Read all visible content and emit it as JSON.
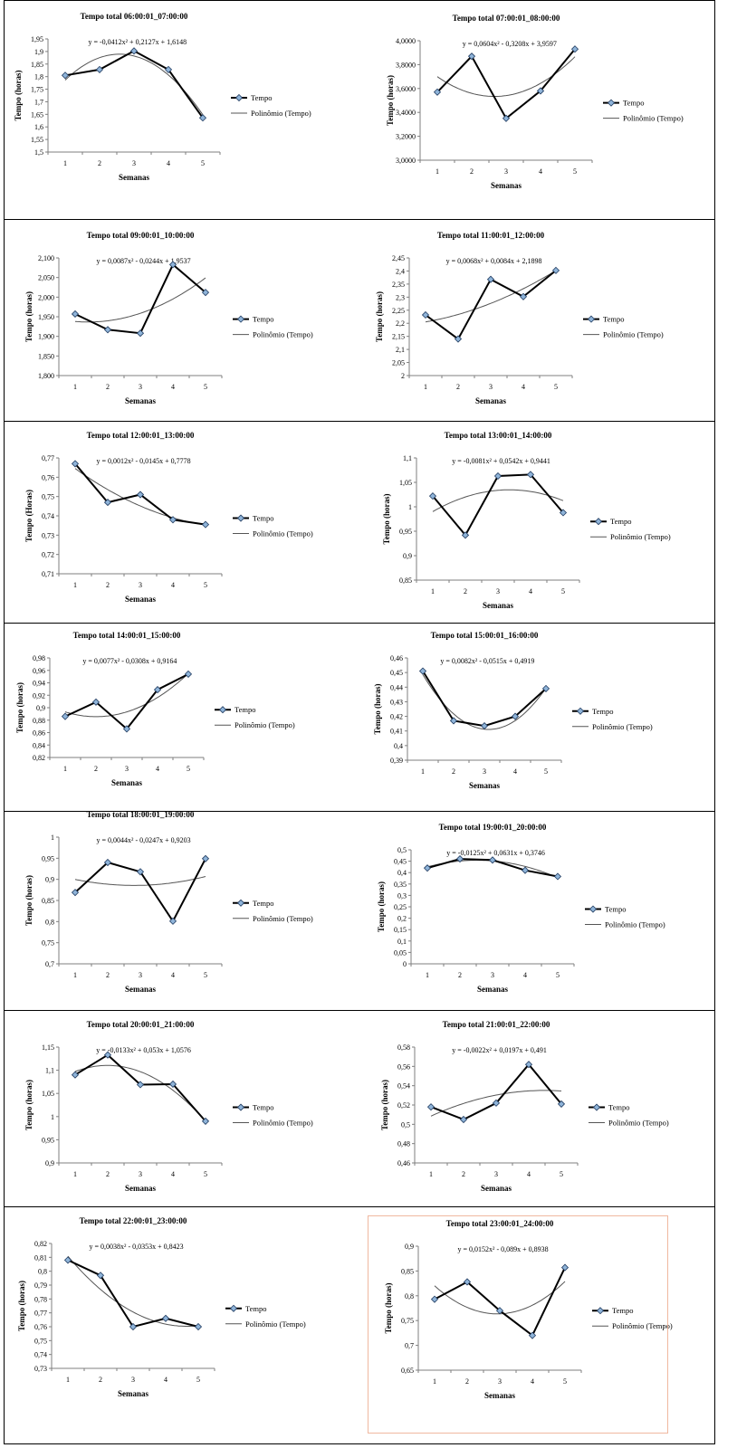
{
  "colors": {
    "data_line": "#000000",
    "marker_fill": "#8fb4d9",
    "marker_stroke": "#1f3a5f",
    "trend_line": "#555555",
    "highlight_border": "#f0b8a0"
  },
  "chart_data": [
    {
      "type": "line",
      "title": "Tempo total 06:00:01_07:00:00",
      "equation": "y = -0,0412x² + 0,2127x + 1,6148",
      "xlabel": "Semanas",
      "ylabel": "Tempo (horas)",
      "x": [
        1,
        2,
        3,
        4,
        5
      ],
      "y_ticks": [
        "1,5",
        "1,55",
        "1,6",
        "1,65",
        "1,7",
        "1,75",
        "1,8",
        "1,85",
        "1,9",
        "1,95"
      ],
      "ylim": [
        1.5,
        1.95
      ],
      "series": [
        {
          "name": "Tempo",
          "values": [
            1.805,
            1.828,
            1.902,
            1.828,
            1.636
          ]
        },
        {
          "name": "Polinômio (Tempo)",
          "coefficients": [
            1.6148,
            0.2127,
            -0.0412
          ]
        }
      ],
      "legend": "right"
    },
    {
      "type": "line",
      "title": "Tempo total 07:00:01_08:00:00",
      "equation": "y = 0,0604x² - 0,3208x + 3,9597",
      "xlabel": "Semanas",
      "ylabel": "Tempo (horas)",
      "x": [
        1,
        2,
        3,
        4,
        5
      ],
      "y_ticks": [
        "3,0000",
        "3,2000",
        "3,4000",
        "3,6000",
        "3,8000",
        "4,0000"
      ],
      "ylim": [
        3.0,
        4.0
      ],
      "series": [
        {
          "name": "Tempo",
          "values": [
            3.57,
            3.87,
            3.35,
            3.58,
            3.93
          ]
        },
        {
          "name": "Polinômio (Tempo)",
          "coefficients": [
            3.9597,
            -0.3208,
            0.0604
          ]
        }
      ],
      "legend": "right"
    },
    {
      "type": "line",
      "title": "Tempo total 09:00:01_10:00:00",
      "equation": "y = 0,0087x² - 0,0244x + 1,9537",
      "xlabel": "Semanas",
      "ylabel": "Tempo (horas)",
      "x": [
        1,
        2,
        3,
        4,
        5
      ],
      "y_ticks": [
        "1,800",
        "1,850",
        "1,900",
        "1,950",
        "2,000",
        "2,050",
        "2,100"
      ],
      "ylim": [
        1.8,
        2.1
      ],
      "series": [
        {
          "name": "Tempo",
          "values": [
            1.957,
            1.917,
            1.908,
            2.083,
            2.012
          ]
        },
        {
          "name": "Polinômio (Tempo)",
          "coefficients": [
            1.9537,
            -0.0244,
            0.0087
          ]
        }
      ],
      "legend": "right"
    },
    {
      "type": "line",
      "title": "Tempo total 11:00:01_12:00:00",
      "equation": "y = 0,0068x² + 0,0084x + 2,1898",
      "xlabel": "Semanas",
      "ylabel": "Tempo (horas)",
      "x": [
        1,
        2,
        3,
        4,
        5
      ],
      "y_ticks": [
        "2",
        "2,05",
        "2,1",
        "2,15",
        "2,2",
        "2,25",
        "2,3",
        "2,35",
        "2,4",
        "2,45"
      ],
      "ylim": [
        2.0,
        2.45
      ],
      "series": [
        {
          "name": "Tempo",
          "values": [
            2.232,
            2.14,
            2.368,
            2.302,
            2.402
          ]
        },
        {
          "name": "Polinômio (Tempo)",
          "coefficients": [
            2.1898,
            0.0084,
            0.0068
          ]
        }
      ],
      "legend": "right"
    },
    {
      "type": "line",
      "title": "Tempo total 12:00:01_13:00:00",
      "equation": "y = 0,0012x² - 0,0145x + 0,7778",
      "xlabel": "Semanas",
      "ylabel": "Tempo (Horas)",
      "x": [
        1,
        2,
        3,
        4,
        5
      ],
      "y_ticks": [
        "0,71",
        "0,72",
        "0,73",
        "0,74",
        "0,75",
        "0,76",
        "0,77"
      ],
      "ylim": [
        0.71,
        0.77
      ],
      "series": [
        {
          "name": "Tempo",
          "values": [
            0.767,
            0.747,
            0.751,
            0.738,
            0.7355
          ]
        },
        {
          "name": "Polinômio (Tempo)",
          "coefficients": [
            0.7778,
            -0.0145,
            0.0012
          ]
        }
      ],
      "legend": "right"
    },
    {
      "type": "line",
      "title": "Tempo total 13:00:01_14:00:00",
      "equation": "y = -0,0081x² + 0,0542x + 0,9441",
      "xlabel": "Semanas",
      "ylabel": "Tempo (horas)",
      "x": [
        1,
        2,
        3,
        4,
        5
      ],
      "y_ticks": [
        "0,85",
        "0,9",
        "0,95",
        "1",
        "1,05",
        "1,1"
      ],
      "ylim": [
        0.85,
        1.1
      ],
      "series": [
        {
          "name": "Tempo",
          "values": [
            1.022,
            0.942,
            1.063,
            1.066,
            0.988
          ]
        },
        {
          "name": "Polinômio (Tempo)",
          "coefficients": [
            0.9441,
            0.0542,
            -0.0081
          ]
        }
      ],
      "legend": "right"
    },
    {
      "type": "line",
      "title": "Tempo total 14:00:01_15:00:00",
      "equation": "y = 0,0077x² - 0,0308x + 0,9164",
      "xlabel": "Semanas",
      "ylabel": "Tempo (horas)",
      "x": [
        1,
        2,
        3,
        4,
        5
      ],
      "y_ticks": [
        "0,82",
        "0,84",
        "0,86",
        "0,88",
        "0,9",
        "0,92",
        "0,94",
        "0,96",
        "0,98"
      ],
      "ylim": [
        0.82,
        0.98
      ],
      "series": [
        {
          "name": "Tempo",
          "values": [
            0.886,
            0.909,
            0.866,
            0.929,
            0.954
          ]
        },
        {
          "name": "Polinômio (Tempo)",
          "coefficients": [
            0.9164,
            -0.0308,
            0.0077
          ]
        }
      ],
      "legend": "right"
    },
    {
      "type": "line",
      "title": "Tempo total 15:00:01_16:00:00",
      "equation": "y = 0,0082x² - 0,0515x + 0,4919",
      "xlabel": "Semanas",
      "ylabel": "Tempo (horas)",
      "x": [
        1,
        2,
        3,
        4,
        5
      ],
      "y_ticks": [
        "0,39",
        "0,4",
        "0,41",
        "0,42",
        "0,43",
        "0,44",
        "0,45",
        "0,46"
      ],
      "ylim": [
        0.39,
        0.46
      ],
      "series": [
        {
          "name": "Tempo",
          "values": [
            0.451,
            0.417,
            0.4135,
            0.42,
            0.439
          ]
        },
        {
          "name": "Polinômio (Tempo)",
          "coefficients": [
            0.4919,
            -0.0515,
            0.0082
          ]
        }
      ],
      "legend": "right"
    },
    {
      "type": "line",
      "title": "Tempo total 18:00:01_19:00:00",
      "equation": "y = 0,0044x² - 0,0247x + 0,9203",
      "xlabel": "Semanas",
      "ylabel": "Tempo (horas)",
      "x": [
        1,
        2,
        3,
        4,
        5
      ],
      "y_ticks": [
        "0,7",
        "0,75",
        "0,8",
        "0,85",
        "0,9",
        "0,95",
        "1"
      ],
      "ylim": [
        0.7,
        1.0
      ],
      "series": [
        {
          "name": "Tempo",
          "values": [
            0.869,
            0.94,
            0.918,
            0.801,
            0.949
          ]
        },
        {
          "name": "Polinômio (Tempo)",
          "coefficients": [
            0.9203,
            -0.0247,
            0.0044
          ]
        }
      ],
      "legend": "right"
    },
    {
      "type": "line",
      "title": "Tempo total 19:00:01_20:00:00",
      "equation": "y = -0,0125x² + 0,0631x + 0,3746",
      "xlabel": "Semanas",
      "ylabel": "Tempo (horas)",
      "x": [
        1,
        2,
        3,
        4,
        5
      ],
      "y_ticks": [
        "0",
        "0,05",
        "0,1",
        "0,15",
        "0,2",
        "0,25",
        "0,3",
        "0,35",
        "0,4",
        "0,45",
        "0,5"
      ],
      "ylim": [
        0.0,
        0.5
      ],
      "series": [
        {
          "name": "Tempo",
          "values": [
            0.42,
            0.46,
            0.455,
            0.41,
            0.383
          ]
        },
        {
          "name": "Polinômio (Tempo)",
          "coefficients": [
            0.3746,
            0.0631,
            -0.0125
          ]
        }
      ],
      "legend": "right"
    },
    {
      "type": "line",
      "title": "Tempo total 20:00:01_21:00:00",
      "equation": "y = -0,0133x² + 0,053x + 1,0576",
      "xlabel": "Semanas",
      "ylabel": "Tempo (horas)",
      "x": [
        1,
        2,
        3,
        4,
        5
      ],
      "y_ticks": [
        "0,9",
        "0,95",
        "1",
        "1,05",
        "1,1",
        "1,15"
      ],
      "ylim": [
        0.9,
        1.15
      ],
      "series": [
        {
          "name": "Tempo",
          "values": [
            1.09,
            1.133,
            1.069,
            1.07,
            0.99
          ]
        },
        {
          "name": "Polinômio (Tempo)",
          "coefficients": [
            1.0576,
            0.053,
            -0.0133
          ]
        }
      ],
      "legend": "right"
    },
    {
      "type": "line",
      "title": "Tempo total 21:00:01_22:00:00",
      "equation": "y = -0,0022x² + 0,0197x + 0,491",
      "xlabel": "Semanas",
      "ylabel": "Tempo (horas)",
      "x": [
        1,
        2,
        3,
        4,
        5
      ],
      "y_ticks": [
        "0,46",
        "0,48",
        "0,5",
        "0,52",
        "0,54",
        "0,56",
        "0,58"
      ],
      "ylim": [
        0.46,
        0.58
      ],
      "series": [
        {
          "name": "Tempo",
          "values": [
            0.518,
            0.505,
            0.522,
            0.562,
            0.521
          ]
        },
        {
          "name": "Polinômio (Tempo)",
          "coefficients": [
            0.491,
            0.0197,
            -0.0022
          ]
        }
      ],
      "legend": "right"
    },
    {
      "type": "line",
      "title": "Tempo total 22:00:01_23:00:00",
      "equation": "y = 0,0038x² - 0,0353x + 0,8423",
      "xlabel": "Semanas",
      "ylabel": "Tempo (horas)",
      "x": [
        1,
        2,
        3,
        4,
        5
      ],
      "y_ticks": [
        "0,73",
        "0,74",
        "0,75",
        "0,76",
        "0,77",
        "0,78",
        "0,79",
        "0,8",
        "0,81",
        "0,82"
      ],
      "ylim": [
        0.73,
        0.82
      ],
      "series": [
        {
          "name": "Tempo",
          "values": [
            0.808,
            0.797,
            0.76,
            0.766,
            0.76
          ]
        },
        {
          "name": "Polinômio (Tempo)",
          "coefficients": [
            0.8423,
            -0.0353,
            0.0038
          ]
        }
      ],
      "legend": "right"
    },
    {
      "type": "line",
      "title": "Tempo total 23:00:01_24:00:00",
      "equation": "y = 0,0152x² - 0,089x + 0,8938",
      "xlabel": "Semanas",
      "ylabel": "Tempo (horas)",
      "x": [
        1,
        2,
        3,
        4,
        5
      ],
      "y_ticks": [
        "0,65",
        "0,7",
        "0,75",
        "0,8",
        "0,85",
        "0,9"
      ],
      "ylim": [
        0.65,
        0.9
      ],
      "series": [
        {
          "name": "Tempo",
          "values": [
            0.793,
            0.828,
            0.77,
            0.72,
            0.857
          ]
        },
        {
          "name": "Polinômio (Tempo)",
          "coefficients": [
            0.8938,
            -0.089,
            0.0152
          ]
        }
      ],
      "legend": "right"
    }
  ]
}
